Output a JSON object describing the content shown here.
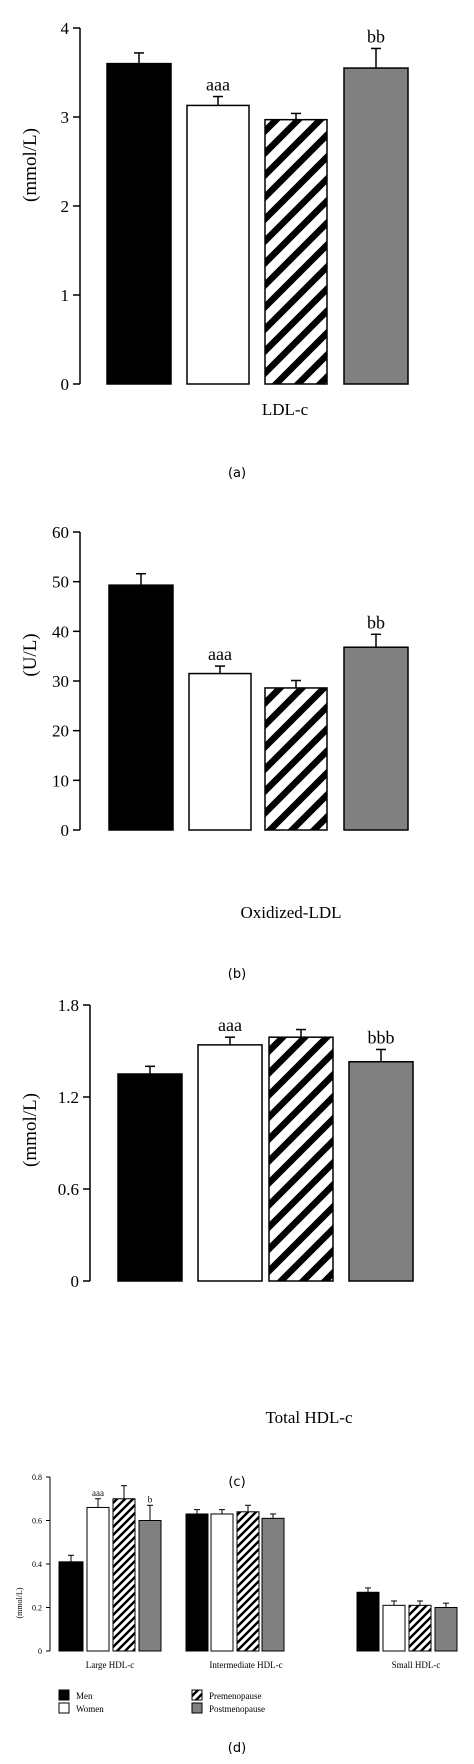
{
  "colors": {
    "men": "#000000",
    "women": "#ffffff",
    "premenopause": "hatched-black-white",
    "postmenopause": "#808080",
    "axis": "#000000"
  },
  "chart_data": [
    {
      "panel": "(a)",
      "type": "bar",
      "ylabel": "(mmol/L)",
      "ylim": [
        0,
        4
      ],
      "yticks": [
        "0",
        "1",
        "2",
        "3",
        "4"
      ],
      "categories": [
        "LDL-c"
      ],
      "series": [
        {
          "group": "men",
          "values": [
            3.6
          ],
          "error": [
            0.12
          ],
          "annotation": ""
        },
        {
          "group": "women",
          "values": [
            3.13
          ],
          "error": [
            0.1
          ],
          "annotation": "aaa"
        },
        {
          "group": "premenopause",
          "values": [
            2.97
          ],
          "error": [
            0.07
          ],
          "annotation": ""
        },
        {
          "group": "postmenopause",
          "values": [
            3.55
          ],
          "error": [
            0.22
          ],
          "annotation": "bb"
        }
      ]
    },
    {
      "panel": "(b)",
      "type": "bar",
      "ylabel": "(U/L)",
      "ylim": [
        0,
        60
      ],
      "yticks": [
        "0",
        "10",
        "20",
        "30",
        "40",
        "50",
        "60"
      ],
      "categories": [
        "Oxidized-LDL"
      ],
      "series": [
        {
          "group": "men",
          "values": [
            49.3
          ],
          "error": [
            2.3
          ],
          "annotation": ""
        },
        {
          "group": "women",
          "values": [
            31.5
          ],
          "error": [
            1.5
          ],
          "annotation": "aaa"
        },
        {
          "group": "premenopause",
          "values": [
            28.6
          ],
          "error": [
            1.5
          ],
          "annotation": ""
        },
        {
          "group": "postmenopause",
          "values": [
            36.8
          ],
          "error": [
            2.6
          ],
          "annotation": "bb"
        }
      ]
    },
    {
      "panel": "(c)",
      "type": "bar",
      "ylabel": "(mmol/L)",
      "ylim": [
        0,
        1.8
      ],
      "yticks": [
        "0",
        "0.6",
        "1.2",
        "1.8"
      ],
      "categories": [
        "Total HDL-c"
      ],
      "series": [
        {
          "group": "men",
          "values": [
            1.35
          ],
          "error": [
            0.05
          ],
          "annotation": ""
        },
        {
          "group": "women",
          "values": [
            1.54
          ],
          "error": [
            0.05
          ],
          "annotation": "aaa"
        },
        {
          "group": "premenopause",
          "values": [
            1.59
          ],
          "error": [
            0.05
          ],
          "annotation": ""
        },
        {
          "group": "postmenopause",
          "values": [
            1.43
          ],
          "error": [
            0.08
          ],
          "annotation": "bbb"
        }
      ]
    },
    {
      "panel": "(d)",
      "type": "bar",
      "ylabel": "(mmol/L)",
      "ylim": [
        0,
        0.8
      ],
      "yticks": [
        "0",
        "0.2",
        "0.4",
        "0.6",
        "0.8"
      ],
      "categories": [
        "Large HDL-c",
        "Intermediate HDL-c",
        "Small HDL-c"
      ],
      "series": [
        {
          "group": "men",
          "values": [
            0.41,
            0.63,
            0.27
          ],
          "error": [
            0.03,
            0.02,
            0.02
          ],
          "annotation": [
            "",
            "",
            ""
          ]
        },
        {
          "group": "women",
          "values": [
            0.66,
            0.63,
            0.21
          ],
          "error": [
            0.04,
            0.02,
            0.02
          ],
          "annotation": [
            "aaa",
            "",
            ""
          ]
        },
        {
          "group": "premenopause",
          "values": [
            0.7,
            0.64,
            0.21
          ],
          "error": [
            0.06,
            0.03,
            0.02
          ],
          "annotation": [
            "",
            "",
            ""
          ]
        },
        {
          "group": "postmenopause",
          "values": [
            0.6,
            0.61,
            0.2
          ],
          "error": [
            0.07,
            0.02,
            0.02
          ],
          "annotation": [
            "b",
            "",
            ""
          ]
        }
      ],
      "legend": {
        "placement": "bottom",
        "entries": [
          {
            "group": "men",
            "label": "Men"
          },
          {
            "group": "women",
            "label": "Women"
          },
          {
            "group": "premenopause",
            "label": "Premenopause"
          },
          {
            "group": "postmenopause",
            "label": "Postmenopause"
          }
        ]
      }
    }
  ]
}
